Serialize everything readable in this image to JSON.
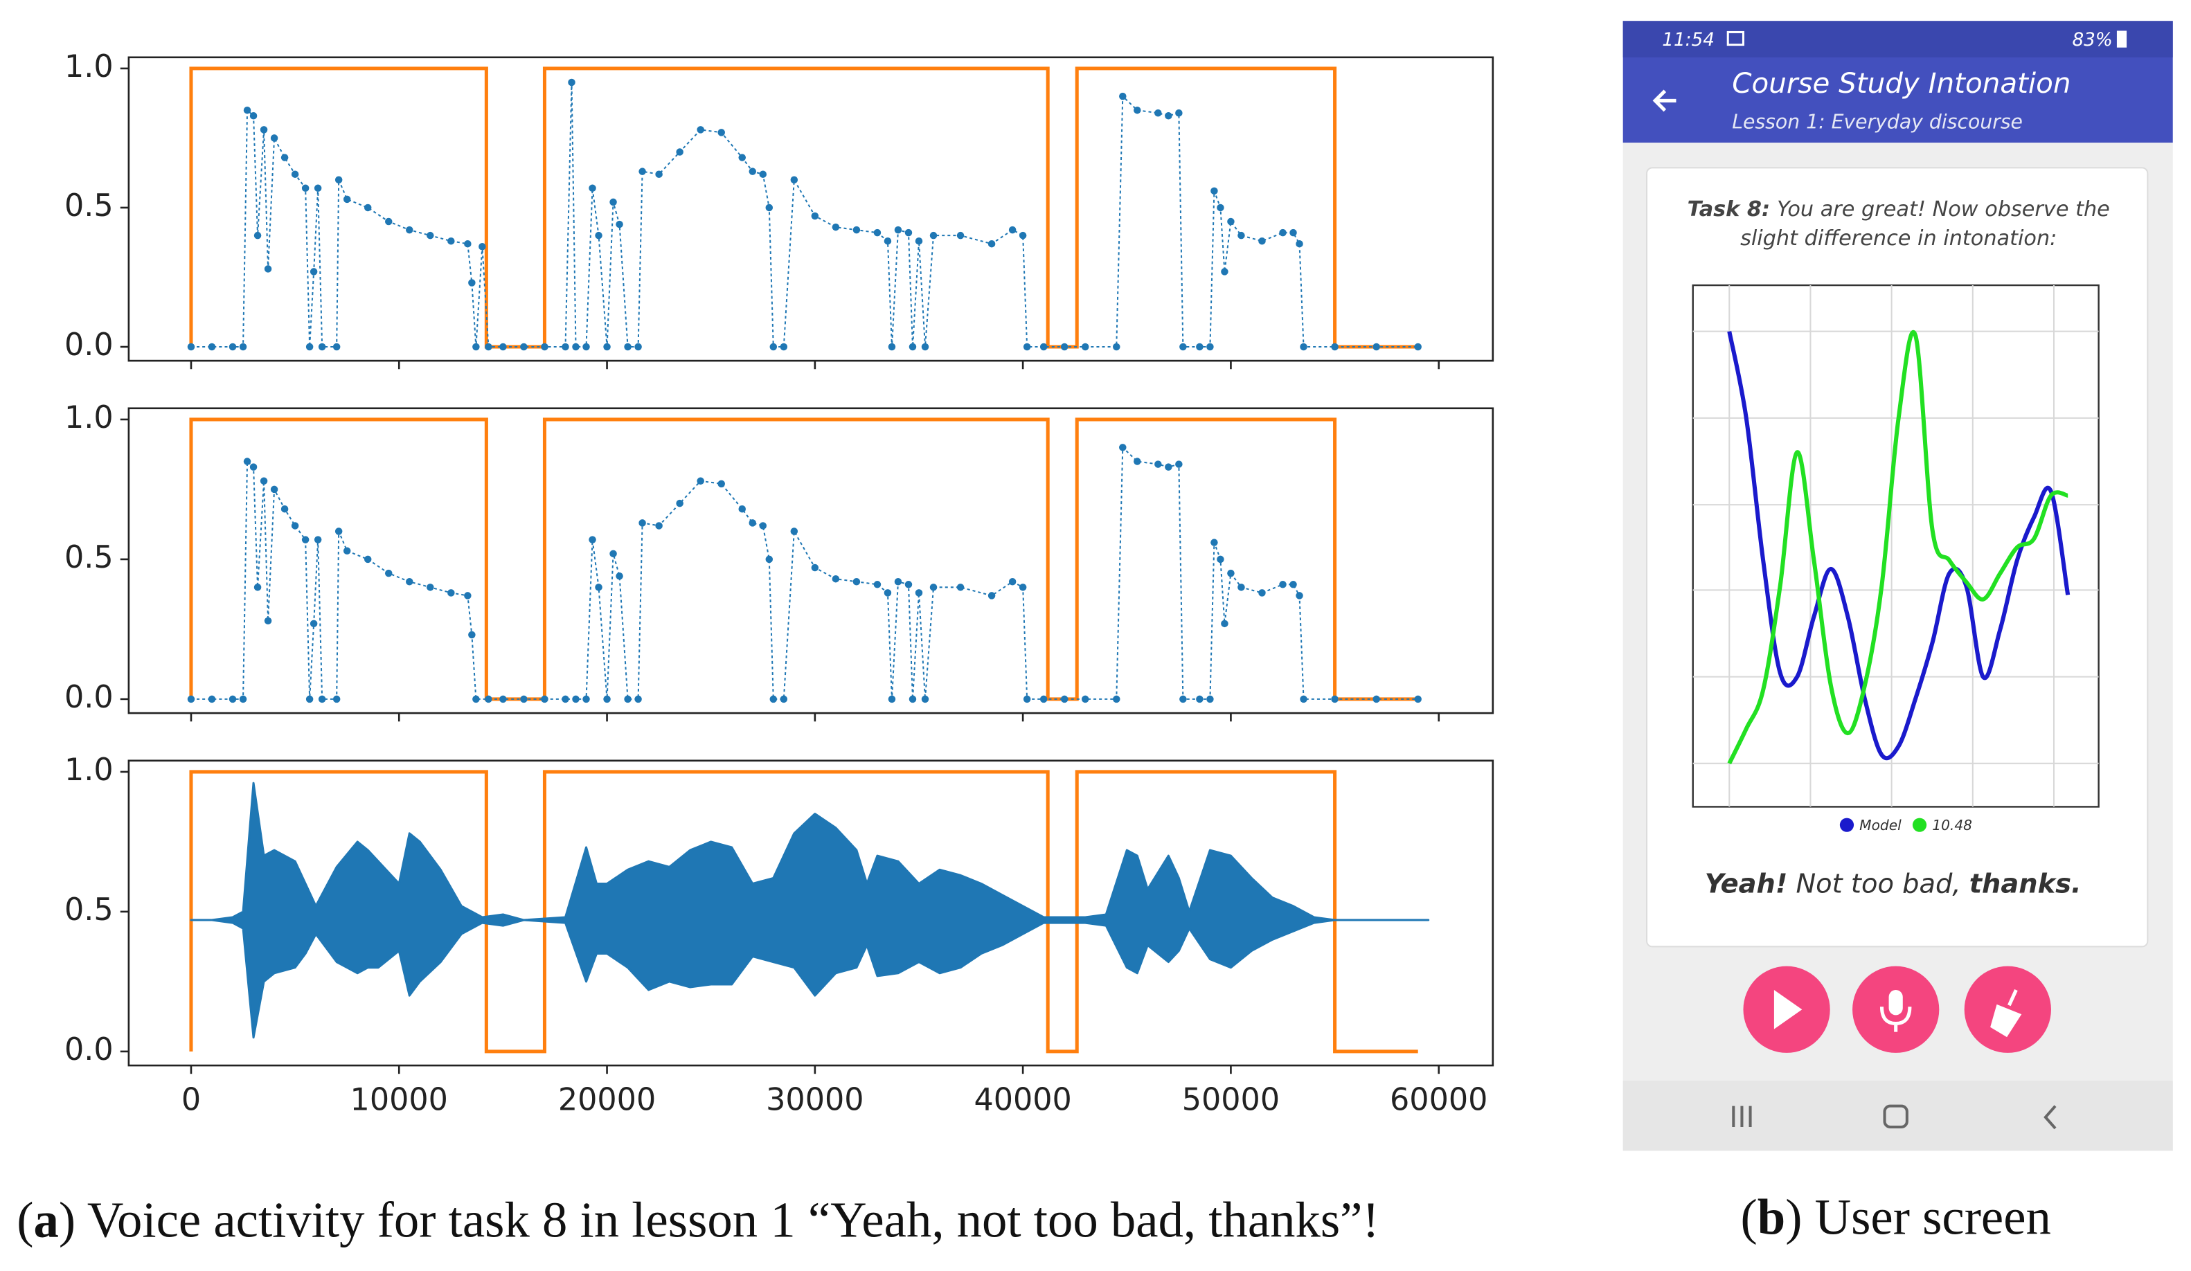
{
  "chart_data": [
    {
      "type": "line",
      "xlim": [
        -3000,
        62600
      ],
      "ylim": [
        -0.05,
        1.04
      ],
      "xticks": [
        0,
        10000,
        20000,
        30000,
        40000,
        50000,
        60000
      ],
      "xtick_labels": false,
      "yticks": [
        {
          "value": 0,
          "label": "0.0"
        },
        {
          "value": 0.5,
          "label": "0.5"
        },
        {
          "value": 1,
          "label": "1.0"
        }
      ],
      "series": [
        {
          "color": "#ff7f0e",
          "style": "step",
          "x": [
            0,
            0,
            14200,
            14200,
            17000,
            17000,
            41200,
            41200,
            42600,
            42600,
            55000,
            55000,
            59000
          ],
          "values": [
            0,
            1,
            1,
            0,
            0,
            1,
            1,
            0,
            0,
            1,
            1,
            0,
            0
          ]
        },
        {
          "color": "#1f77b4",
          "style": "dotted-markers",
          "x": [
            0,
            1000,
            2000,
            2500,
            2700,
            3000,
            3200,
            3500,
            3700,
            4000,
            4500,
            5000,
            5500,
            5700,
            5900,
            6100,
            6300,
            7000,
            7100,
            7500,
            8500,
            9500,
            10500,
            11500,
            12500,
            13300,
            13500,
            13700,
            14000,
            14300,
            15000,
            16000,
            17000,
            18000,
            18300,
            18500,
            19000,
            19300,
            19600,
            20000,
            20300,
            20600,
            21000,
            21500,
            21700,
            22500,
            23500,
            24500,
            25500,
            26500,
            27000,
            27500,
            27800,
            28000,
            28500,
            29000,
            30000,
            31000,
            32000,
            33000,
            33500,
            33700,
            34000,
            34500,
            34700,
            35000,
            35300,
            35700,
            37000,
            38500,
            39500,
            40000,
            40200,
            41000,
            42000,
            43000,
            44500,
            44800,
            45500,
            46500,
            47000,
            47500,
            47700,
            48500,
            49000,
            49200,
            49500,
            49700,
            50000,
            50500,
            51500,
            52500,
            53000,
            53300,
            53500,
            55000,
            57000,
            59000
          ],
          "values": [
            0,
            0,
            0,
            0,
            0.85,
            0.83,
            0.4,
            0.78,
            0.28,
            0.75,
            0.68,
            0.62,
            0.57,
            0,
            0.27,
            0.57,
            0,
            0,
            0.6,
            0.53,
            0.5,
            0.45,
            0.42,
            0.4,
            0.38,
            0.37,
            0.23,
            0,
            0.36,
            0,
            0,
            0,
            0,
            0,
            0.95,
            0,
            0,
            0.57,
            0.4,
            0,
            0.52,
            0.44,
            0,
            0,
            0.63,
            0.62,
            0.7,
            0.78,
            0.77,
            0.68,
            0.63,
            0.62,
            0.5,
            0,
            0,
            0.6,
            0.47,
            0.43,
            0.42,
            0.41,
            0.38,
            0,
            0.42,
            0.41,
            0,
            0.38,
            0,
            0.4,
            0.4,
            0.37,
            0.42,
            0.4,
            0,
            0,
            0,
            0,
            0,
            0.9,
            0.85,
            0.84,
            0.83,
            0.84,
            0,
            0,
            0,
            0.56,
            0.5,
            0.27,
            0.45,
            0.4,
            0.38,
            0.41,
            0.41,
            0.37,
            0,
            0,
            0,
            0
          ]
        }
      ]
    },
    {
      "type": "line",
      "xlim": [
        -3000,
        62600
      ],
      "ylim": [
        -0.05,
        1.04
      ],
      "xticks": [
        0,
        10000,
        20000,
        30000,
        40000,
        50000,
        60000
      ],
      "xtick_labels": false,
      "yticks": [
        {
          "value": 0,
          "label": "0.0"
        },
        {
          "value": 0.5,
          "label": "0.5"
        },
        {
          "value": 1,
          "label": "1.0"
        }
      ],
      "series": [
        {
          "color": "#ff7f0e",
          "style": "step",
          "x": [
            0,
            0,
            14200,
            14200,
            17000,
            17000,
            41200,
            41200,
            42600,
            42600,
            55000,
            55000,
            59000
          ],
          "values": [
            0,
            1,
            1,
            0,
            0,
            1,
            1,
            0,
            0,
            1,
            1,
            0,
            0
          ]
        },
        {
          "color": "#1f77b4",
          "style": "dotted-markers",
          "x": [
            0,
            1000,
            2000,
            2500,
            2700,
            3000,
            3200,
            3500,
            3700,
            4000,
            4500,
            5000,
            5500,
            5700,
            5900,
            6100,
            6300,
            7000,
            7100,
            7500,
            8500,
            9500,
            10500,
            11500,
            12500,
            13300,
            13500,
            13700,
            14300,
            15000,
            16000,
            17000,
            18000,
            18500,
            19000,
            19300,
            19600,
            20000,
            20300,
            20600,
            21000,
            21500,
            21700,
            22500,
            23500,
            24500,
            25500,
            26500,
            27000,
            27500,
            27800,
            28000,
            28500,
            29000,
            30000,
            31000,
            32000,
            33000,
            33500,
            33700,
            34000,
            34500,
            34700,
            35000,
            35300,
            35700,
            37000,
            38500,
            39500,
            40000,
            40200,
            41000,
            42000,
            43000,
            44500,
            44800,
            45500,
            46500,
            47000,
            47500,
            47700,
            48500,
            49000,
            49200,
            49500,
            49700,
            50000,
            50500,
            51500,
            52500,
            53000,
            53300,
            53500,
            55000,
            57000,
            59000
          ],
          "values": [
            0,
            0,
            0,
            0,
            0.85,
            0.83,
            0.4,
            0.78,
            0.28,
            0.75,
            0.68,
            0.62,
            0.57,
            0,
            0.27,
            0.57,
            0,
            0,
            0.6,
            0.53,
            0.5,
            0.45,
            0.42,
            0.4,
            0.38,
            0.37,
            0.23,
            0,
            0,
            0,
            0,
            0,
            0,
            0,
            0,
            0.57,
            0.4,
            0,
            0.52,
            0.44,
            0,
            0,
            0.63,
            0.62,
            0.7,
            0.78,
            0.77,
            0.68,
            0.63,
            0.62,
            0.5,
            0,
            0,
            0.6,
            0.47,
            0.43,
            0.42,
            0.41,
            0.38,
            0,
            0.42,
            0.41,
            0,
            0.38,
            0,
            0.4,
            0.4,
            0.37,
            0.42,
            0.4,
            0,
            0,
            0,
            0,
            0,
            0.9,
            0.85,
            0.84,
            0.83,
            0.84,
            0,
            0,
            0,
            0.56,
            0.5,
            0.27,
            0.45,
            0.4,
            0.38,
            0.41,
            0.41,
            0.37,
            0,
            0,
            0,
            0
          ]
        }
      ]
    },
    {
      "type": "line",
      "xlim": [
        -3000,
        62600
      ],
      "ylim": [
        -0.05,
        1.04
      ],
      "xticks": [
        0,
        10000,
        20000,
        30000,
        40000,
        50000,
        60000
      ],
      "xtick_labels": true,
      "yticks": [
        {
          "value": 0,
          "label": "0.0"
        },
        {
          "value": 0.5,
          "label": "0.5"
        },
        {
          "value": 1,
          "label": "1.0"
        }
      ],
      "series": [
        {
          "color": "#ff7f0e",
          "style": "step",
          "x": [
            0,
            0,
            14200,
            14200,
            17000,
            17000,
            41200,
            41200,
            42600,
            42600,
            55000,
            55000,
            59000
          ],
          "values": [
            0,
            1,
            1,
            0,
            0,
            1,
            1,
            0,
            0,
            1,
            1,
            0,
            0
          ]
        },
        {
          "color": "#1f77b4",
          "style": "envelope",
          "x": [
            0,
            1000,
            2000,
            2500,
            3000,
            3500,
            4000,
            5000,
            5500,
            6000,
            7000,
            8000,
            8500,
            9000,
            10000,
            10500,
            11000,
            12000,
            13000,
            14000,
            15000,
            16000,
            18000,
            19000,
            19500,
            20000,
            21000,
            22000,
            23000,
            24000,
            25000,
            26000,
            27000,
            28000,
            29000,
            30000,
            31000,
            32000,
            32500,
            33000,
            34000,
            35000,
            36000,
            37000,
            38000,
            39000,
            40000,
            41000,
            43000,
            44000,
            45000,
            45500,
            46000,
            47000,
            47500,
            48000,
            49000,
            50000,
            51000,
            52000,
            53000,
            54000,
            55000,
            57000,
            59500
          ],
          "high": [
            0.47,
            0.47,
            0.48,
            0.5,
            0.96,
            0.7,
            0.72,
            0.68,
            0.6,
            0.52,
            0.66,
            0.75,
            0.72,
            0.68,
            0.6,
            0.78,
            0.75,
            0.65,
            0.52,
            0.48,
            0.49,
            0.47,
            0.48,
            0.73,
            0.6,
            0.6,
            0.65,
            0.68,
            0.66,
            0.72,
            0.75,
            0.73,
            0.6,
            0.62,
            0.78,
            0.85,
            0.8,
            0.72,
            0.6,
            0.7,
            0.68,
            0.6,
            0.65,
            0.63,
            0.6,
            0.56,
            0.52,
            0.48,
            0.48,
            0.49,
            0.72,
            0.7,
            0.58,
            0.7,
            0.62,
            0.5,
            0.72,
            0.7,
            0.62,
            0.55,
            0.52,
            0.48,
            0.47,
            0.47,
            0.47
          ],
          "low": [
            0.47,
            0.47,
            0.46,
            0.44,
            0.05,
            0.25,
            0.28,
            0.3,
            0.35,
            0.42,
            0.32,
            0.28,
            0.3,
            0.3,
            0.36,
            0.2,
            0.25,
            0.32,
            0.42,
            0.46,
            0.45,
            0.47,
            0.46,
            0.25,
            0.35,
            0.35,
            0.3,
            0.22,
            0.25,
            0.23,
            0.24,
            0.24,
            0.34,
            0.32,
            0.3,
            0.2,
            0.28,
            0.3,
            0.38,
            0.27,
            0.28,
            0.32,
            0.28,
            0.3,
            0.35,
            0.38,
            0.42,
            0.46,
            0.46,
            0.45,
            0.3,
            0.28,
            0.38,
            0.32,
            0.36,
            0.44,
            0.33,
            0.3,
            0.36,
            0.4,
            0.43,
            0.46,
            0.47,
            0.47,
            0.47
          ]
        }
      ]
    },
    {
      "type": "line",
      "xlim": [
        0,
        20
      ],
      "ylim": [
        0,
        1
      ],
      "x": [
        0,
        1,
        2,
        3,
        4,
        5,
        6,
        7,
        8,
        9,
        10,
        11,
        12,
        13,
        14,
        15,
        16,
        17,
        18,
        19,
        20
      ],
      "legend": "bottom",
      "series": [
        {
          "name": "Model",
          "color": "#1a1acc",
          "values": [
            1.0,
            0.8,
            0.47,
            0.21,
            0.2,
            0.34,
            0.45,
            0.34,
            0.15,
            0.02,
            0.04,
            0.15,
            0.28,
            0.44,
            0.41,
            0.2,
            0.31,
            0.47,
            0.57,
            0.63,
            0.39
          ]
        },
        {
          "name": "10.48",
          "color": "#22e022",
          "values": [
            0,
            0.08,
            0.17,
            0.41,
            0.72,
            0.47,
            0.18,
            0.07,
            0.18,
            0.41,
            0.8,
            0.99,
            0.54,
            0.47,
            0.42,
            0.38,
            0.44,
            0.5,
            0.52,
            0.62,
            0.62
          ]
        }
      ]
    }
  ],
  "captions": {
    "a": [
      {
        "text": "(",
        "bold": false
      },
      {
        "text": "a",
        "bold": true
      },
      {
        "text": ") Voice activity for task 8 in lesson 1 “Yeah, not too bad, thanks”!",
        "bold": false
      }
    ],
    "b": [
      {
        "text": "(",
        "bold": false
      },
      {
        "text": "b",
        "bold": true
      },
      {
        "text": ") User screen",
        "bold": false
      }
    ]
  },
  "phone": {
    "time": "11:54",
    "battery": "83%",
    "title": "Course Study Intonation",
    "subtitle": "Lesson 1: Everyday discourse",
    "task_label": "Task 8:",
    "task_line1": "You are great! Now observe the",
    "task_line2": "slight difference in intonation:",
    "sentence": [
      {
        "text": "Yeah!",
        "bold": true
      },
      {
        "text": "Not too bad,",
        "bold": false
      },
      {
        "text": "thanks.",
        "bold": true
      }
    ]
  }
}
